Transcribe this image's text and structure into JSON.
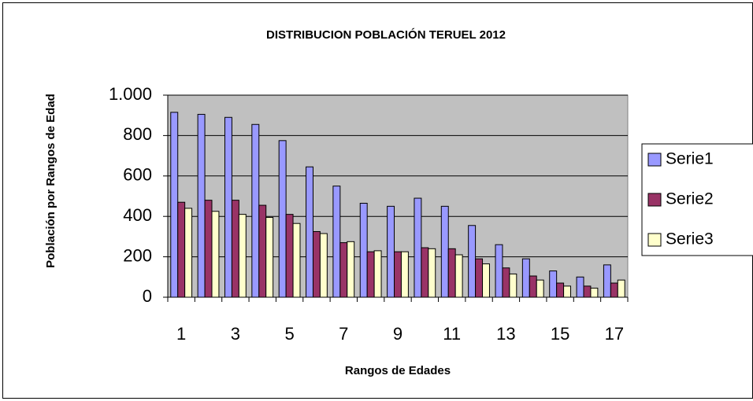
{
  "chart_data": {
    "type": "bar",
    "title": "DISTRIBUCION POBLACIÓN TERUEL 2012",
    "xlabel": "Rangos de Edades",
    "ylabel": "Población por Rangos de Edad",
    "categories": [
      1,
      null,
      3,
      null,
      5,
      null,
      7,
      null,
      9,
      null,
      11,
      null,
      13,
      null,
      15,
      null,
      17
    ],
    "series": [
      {
        "name": "Serie1",
        "color": "#9999ff",
        "values": [
          915,
          905,
          890,
          855,
          775,
          645,
          550,
          465,
          450,
          490,
          450,
          355,
          260,
          190,
          130,
          100,
          160
        ]
      },
      {
        "name": "Serie2",
        "color": "#993366",
        "values": [
          470,
          480,
          480,
          455,
          410,
          325,
          270,
          225,
          225,
          245,
          240,
          190,
          145,
          105,
          70,
          55,
          70
        ]
      },
      {
        "name": "Serie3",
        "color": "#ffffcc",
        "values": [
          440,
          425,
          410,
          395,
          365,
          315,
          275,
          230,
          225,
          240,
          210,
          165,
          115,
          85,
          55,
          45,
          85
        ]
      }
    ],
    "ylim": [
      0,
      1000
    ],
    "yticks": [
      0,
      200,
      400,
      600,
      800,
      {
        "value": 1000,
        "label": "1.000"
      }
    ],
    "grid": true,
    "plot_background": "#c0c0c0",
    "legend": "right"
  }
}
